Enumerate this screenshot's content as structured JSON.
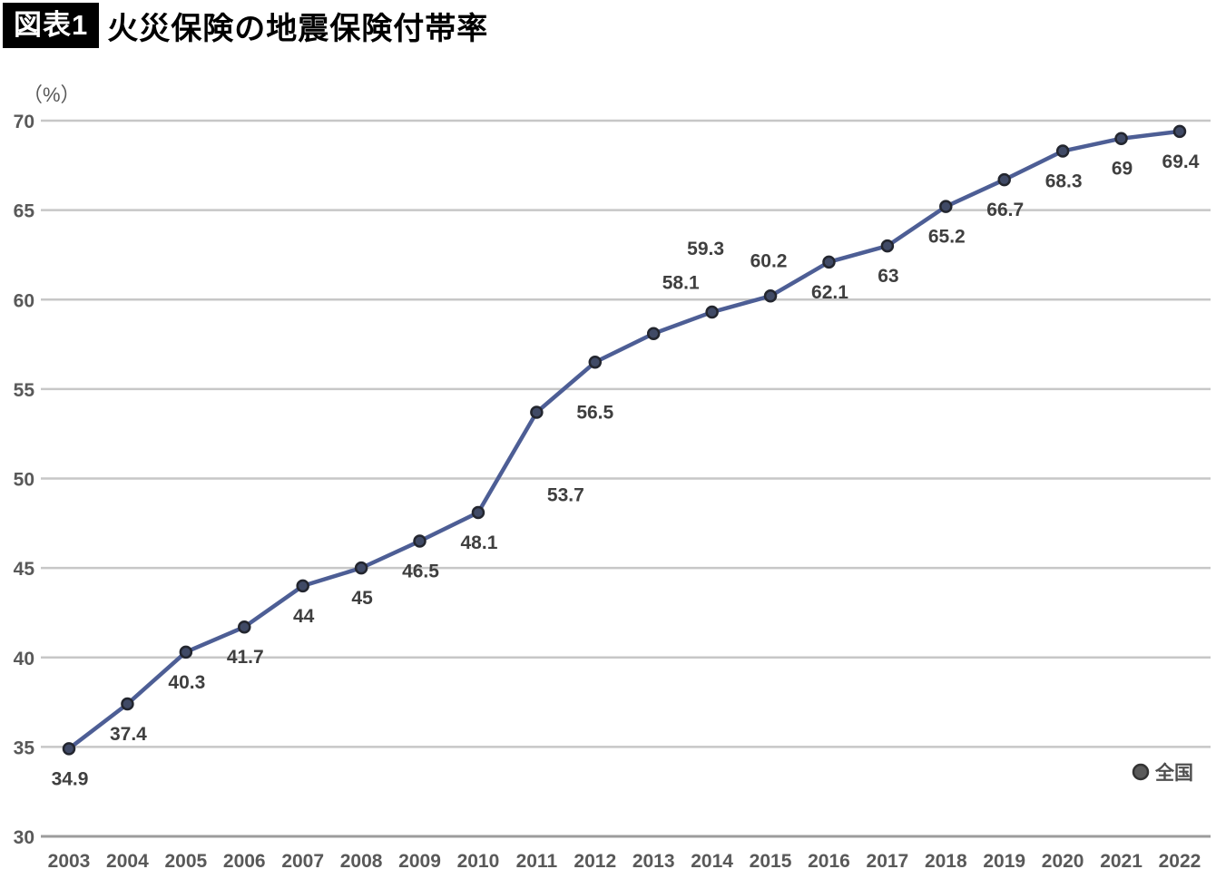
{
  "header": {
    "badge": "図表1",
    "title": "火災保険の地震保険付帯率"
  },
  "chart_data": {
    "type": "line",
    "title": "火災保険の地震保険付帯率",
    "unit_label": "（%）",
    "categories": [
      "2003",
      "2004",
      "2005",
      "2006",
      "2007",
      "2008",
      "2009",
      "2010",
      "2011",
      "2012",
      "2013",
      "2014",
      "2015",
      "2016",
      "2017",
      "2018",
      "2019",
      "2020",
      "2021",
      "2022"
    ],
    "series": [
      {
        "name": "全国",
        "values": [
          34.9,
          37.4,
          40.3,
          41.7,
          44,
          45,
          46.5,
          48.1,
          53.7,
          56.5,
          58.1,
          59.3,
          60.2,
          62.1,
          63,
          65.2,
          66.7,
          68.3,
          69,
          69.4
        ],
        "labels": [
          "34.9",
          "37.4",
          "40.3",
          "41.7",
          "44",
          "45",
          "46.5",
          "48.1",
          "53.7",
          "56.5",
          "58.1",
          "59.3",
          "60.2",
          "62.1",
          "63",
          "65.2",
          "66.7",
          "68.3",
          "69",
          "69.4"
        ]
      }
    ],
    "ylim": [
      30,
      70
    ],
    "ytick_step": 5,
    "yticks": [
      "30",
      "35",
      "40",
      "45",
      "50",
      "55",
      "60",
      "65",
      "70"
    ],
    "grid": "horizontal",
    "legend": {
      "position": "bottom-right",
      "entries": [
        "全国"
      ]
    },
    "colors": {
      "line": "#4d5e95",
      "marker_fill": "#404a66",
      "marker_stroke": "#23262f",
      "grid": "#c7c7c7",
      "axis_bottom": "#9c9c9c",
      "tick_text": "#595959",
      "value_text": "#3f3f3f",
      "legend_marker_fill": "#5a5a5a",
      "legend_marker_stroke": "#333333",
      "legend_text": "#4f4f4f"
    },
    "label_offsets": {
      "default": [
        1,
        33
      ],
      "overrides": {
        "8": [
          32,
          91
        ],
        "9": [
          0,
          55
        ],
        "10": [
          30,
          -56
        ],
        "11": [
          -7,
          -70
        ],
        "12": [
          -2,
          -39
        ]
      }
    }
  }
}
